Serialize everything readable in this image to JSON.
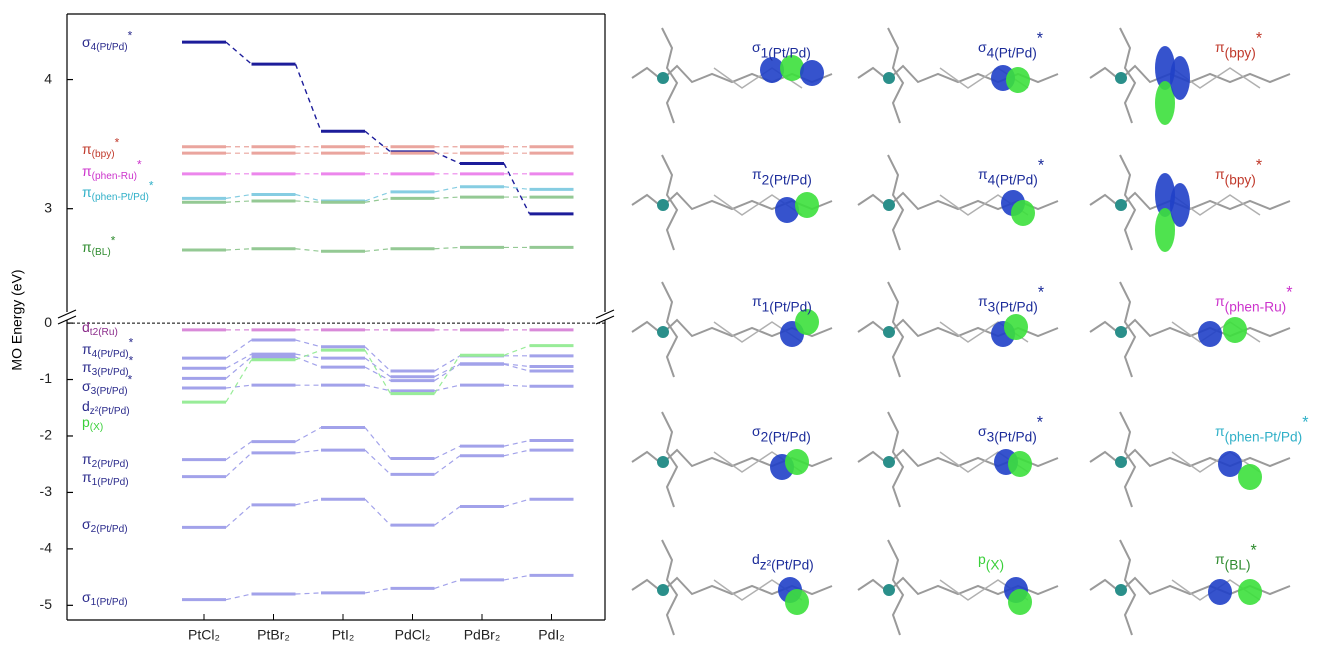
{
  "chart_data": [
    {
      "type": "energy-level",
      "ylim": [
        2.2,
        4.5
      ],
      "yticks": [
        3,
        4
      ],
      "series": [
        {
          "label": {
            "base": "σ",
            "sub": "4(Pt/Pd)",
            "sup": "*"
          },
          "color": "#1c1c9a",
          "label_color": "#2b2b8c",
          "values": [
            4.29,
            4.12,
            3.6,
            3.44,
            3.35,
            2.96
          ]
        },
        {
          "label": {
            "base": "π",
            "sub": "(bpy)",
            "sup": "*"
          },
          "color": "#eaa59e",
          "label_color": "#c0392b",
          "values": [
            3.48,
            3.48,
            3.48,
            3.48,
            3.48,
            3.48
          ]
        },
        {
          "label": null,
          "color": "#eaa59e",
          "values": [
            3.43,
            3.43,
            3.43,
            3.43,
            3.43,
            3.43
          ]
        },
        {
          "label": {
            "base": "π",
            "sub": "(phen-Ru)",
            "sup": "*"
          },
          "color": "#ec86ec",
          "label_color": "#cc33cc",
          "values": [
            3.27,
            3.27,
            3.27,
            3.27,
            3.27,
            3.27
          ]
        },
        {
          "label": {
            "base": "π",
            "sub": "(phen-Pt/Pd)",
            "sup": "*"
          },
          "color": "#86cde2",
          "label_color": "#30b0c8",
          "values": [
            3.08,
            3.11,
            3.06,
            3.13,
            3.17,
            3.15
          ]
        },
        {
          "label": null,
          "color": "#94c994",
          "values": [
            3.05,
            3.06,
            3.05,
            3.08,
            3.09,
            3.09
          ]
        },
        {
          "label": {
            "base": "π",
            "sub": "(BL)",
            "sup": "*"
          },
          "color": "#94c994",
          "label_color": "#2e8b2e",
          "values": [
            2.68,
            2.69,
            2.67,
            2.69,
            2.7,
            2.7
          ]
        }
      ]
    },
    {
      "type": "energy-level",
      "categories": [
        "PtCl₂",
        "PtBr₂",
        "PtI₂",
        "PdCl₂",
        "PdBr₂",
        "PdI₂"
      ],
      "y_label": "MO Energy (eV)",
      "ylim": [
        -5.26,
        0.09
      ],
      "yticks": [
        -5,
        -4,
        -3,
        -2,
        -1,
        0
      ],
      "zero_line": true,
      "series": [
        {
          "label": {
            "base": "d",
            "sub": "t2(Ru)",
            "sup": ""
          },
          "color": "#d98ad9",
          "label_color": "#8b2c8b",
          "values": [
            -0.12,
            -0.12,
            -0.12,
            -0.12,
            -0.12,
            -0.12
          ]
        },
        {
          "label": {
            "base": "π",
            "sub": "4(Pt/Pd)",
            "sup": "*"
          },
          "color": "#a2a2ea",
          "label_color": "#2b2b8c",
          "values": [
            -0.62,
            -0.3,
            -0.42,
            -0.85,
            -0.58,
            -0.58
          ]
        },
        {
          "label": {
            "base": "π",
            "sub": "3(Pt/Pd)",
            "sup": "*"
          },
          "color": "#a2a2ea",
          "label_color": "#2b2b8c",
          "values": [
            -0.8,
            -0.55,
            -0.62,
            -0.95,
            -0.72,
            -0.77
          ]
        },
        {
          "label": {
            "base": "σ",
            "sub": "3(Pt/Pd)",
            "sup": "*"
          },
          "color": "#a2a2ea",
          "label_color": "#2b2b8c",
          "values": [
            -0.98,
            -0.6,
            -0.78,
            -1.02,
            -0.73,
            -0.85
          ]
        },
        {
          "label": {
            "base": "d",
            "sub": "z²(Pt/Pd)",
            "sup": ""
          },
          "color": "#a2a2ea",
          "label_color": "#2b2b8c",
          "values": [
            -1.15,
            -1.1,
            -1.1,
            -1.2,
            -1.1,
            -1.12
          ]
        },
        {
          "label": {
            "base": "p",
            "sub": "(X)",
            "sup": ""
          },
          "color": "#98ec98",
          "label_color": "#3ad03a",
          "values": [
            -1.4,
            -0.65,
            -0.48,
            -1.25,
            -0.57,
            -0.4
          ]
        },
        {
          "label": {
            "base": "π",
            "sub": "2(Pt/Pd)",
            "sup": ""
          },
          "color": "#a2a2ea",
          "label_color": "#2b2b8c",
          "values": [
            -2.42,
            -2.1,
            -1.85,
            -2.4,
            -2.18,
            -2.08
          ]
        },
        {
          "label": {
            "base": "π",
            "sub": "1(Pt/Pd)",
            "sup": ""
          },
          "color": "#a2a2ea",
          "label_color": "#2b2b8c",
          "values": [
            -2.72,
            -2.3,
            -2.25,
            -2.68,
            -2.35,
            -2.25
          ]
        },
        {
          "label": {
            "base": "σ",
            "sub": "2(Pt/Pd)",
            "sup": ""
          },
          "color": "#a2a2ea",
          "label_color": "#2b2b8c",
          "values": [
            -3.62,
            -3.22,
            -3.12,
            -3.58,
            -3.25,
            -3.12
          ]
        },
        {
          "label": {
            "base": "σ",
            "sub": "1(Pt/Pd)",
            "sup": ""
          },
          "color": "#a2a2ea",
          "label_color": "#2b2b8c",
          "values": [
            -4.9,
            -4.8,
            -4.78,
            -4.7,
            -4.55,
            -4.47
          ]
        }
      ]
    }
  ],
  "orbital_panels": [
    [
      {
        "base": "σ",
        "sub": "1(Pt/Pd)",
        "sup": "",
        "color": "#1c2c9a"
      },
      {
        "base": "π",
        "sub": "2(Pt/Pd)",
        "sup": "",
        "color": "#1c2c9a"
      },
      {
        "base": "π",
        "sub": "1(Pt/Pd)",
        "sup": "",
        "color": "#1c2c9a"
      },
      {
        "base": "σ",
        "sub": "2(Pt/Pd)",
        "sup": "",
        "color": "#1c2c9a"
      },
      {
        "base": "d",
        "sub": "z²(Pt/Pd)",
        "sup": "",
        "color": "#1c2c9a"
      }
    ],
    [
      {
        "base": "σ",
        "sub": "4(Pt/Pd)",
        "sup": "*",
        "color": "#1c2c9a"
      },
      {
        "base": "π",
        "sub": "4(Pt/Pd)",
        "sup": "*",
        "color": "#1c2c9a"
      },
      {
        "base": "π",
        "sub": "3(Pt/Pd)",
        "sup": "*",
        "color": "#1c2c9a"
      },
      {
        "base": "σ",
        "sub": "3(Pt/Pd)",
        "sup": "*",
        "color": "#1c2c9a"
      },
      {
        "base": "p",
        "sub": "(X)",
        "sup": "",
        "color": "#3ad03a"
      }
    ],
    [
      {
        "base": "π",
        "sub": "(bpy)",
        "sup": "*",
        "color": "#c0392b"
      },
      {
        "base": "π",
        "sub": "(bpy)",
        "sup": "*",
        "color": "#c0392b"
      },
      {
        "base": "π",
        "sub": "(phen-Ru)",
        "sup": "*",
        "color": "#cc33cc"
      },
      {
        "base": "π",
        "sub": "(phen-Pt/Pd)",
        "sup": "*",
        "color": "#30b0c8"
      },
      {
        "base": "π",
        "sub": "(BL)",
        "sup": "*",
        "color": "#2e8b2e"
      }
    ]
  ]
}
